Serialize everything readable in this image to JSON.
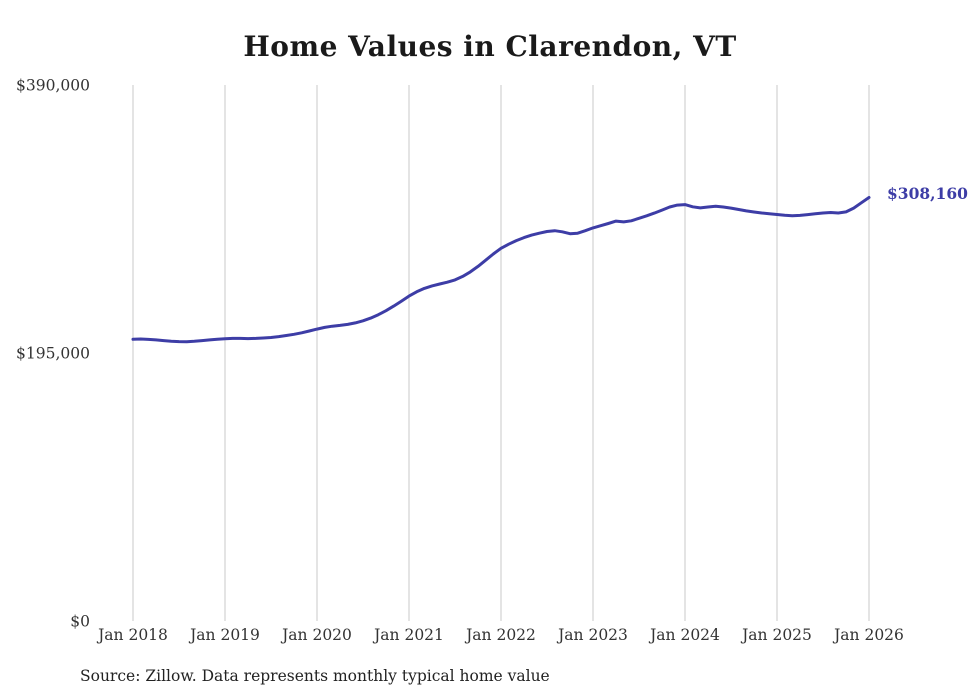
{
  "page": {
    "title": "Home Values in Clarendon, VT",
    "source_note": "Source: Zillow. Data represents monthly typical home value"
  },
  "colors": {
    "line": "#3d3da6",
    "grid": "#c9c9c9",
    "axis_text": "#333333",
    "title_text": "#1a1a1a"
  },
  "chart_data": {
    "type": "line",
    "title": "Home Values in Clarendon, VT",
    "xlabel": "",
    "ylabel": "",
    "x_unit": "month",
    "x_range": [
      "Jan 2018",
      "Jan 2026"
    ],
    "x_tick_labels": [
      "Jan 2018",
      "Jan 2019",
      "Jan 2020",
      "Jan 2021",
      "Jan 2022",
      "Jan 2023",
      "Jan 2024",
      "Jan 2025",
      "Jan 2026"
    ],
    "y_ticks": [
      {
        "value": 0,
        "label": "$0"
      },
      {
        "value": 195000,
        "label": "$195,000"
      },
      {
        "value": 390000,
        "label": "$390,000"
      }
    ],
    "ylim": [
      0,
      390000
    ],
    "grid": "vertical-only",
    "legend": "none",
    "end_label": "$308,160",
    "end_value": 308160,
    "series": [
      {
        "name": "Typical home value",
        "values": [
          205000,
          205200,
          204900,
          204500,
          204000,
          203600,
          203300,
          203200,
          203500,
          204000,
          204500,
          205000,
          205400,
          205600,
          205600,
          205500,
          205600,
          205900,
          206300,
          206900,
          207700,
          208600,
          209700,
          211000,
          212400,
          213600,
          214500,
          215100,
          215800,
          216900,
          218400,
          220400,
          222900,
          225800,
          229100,
          232700,
          236400,
          239500,
          242000,
          243800,
          245200,
          246500,
          248200,
          250700,
          254000,
          258000,
          262500,
          267000,
          271200,
          274200,
          276800,
          279000,
          280800,
          282200,
          283400,
          284000,
          283200,
          281800,
          282200,
          284000,
          286000,
          287600,
          289200,
          291000,
          290400,
          291200,
          293000,
          294800,
          296800,
          299000,
          301200,
          302600,
          303000,
          301400,
          300600,
          301200,
          301800,
          301200,
          300400,
          299400,
          298400,
          297600,
          296900,
          296300,
          295800,
          295200,
          294900,
          295100,
          295700,
          296300,
          296900,
          297200,
          296900,
          297700,
          300400,
          304300,
          308160
        ]
      }
    ]
  }
}
